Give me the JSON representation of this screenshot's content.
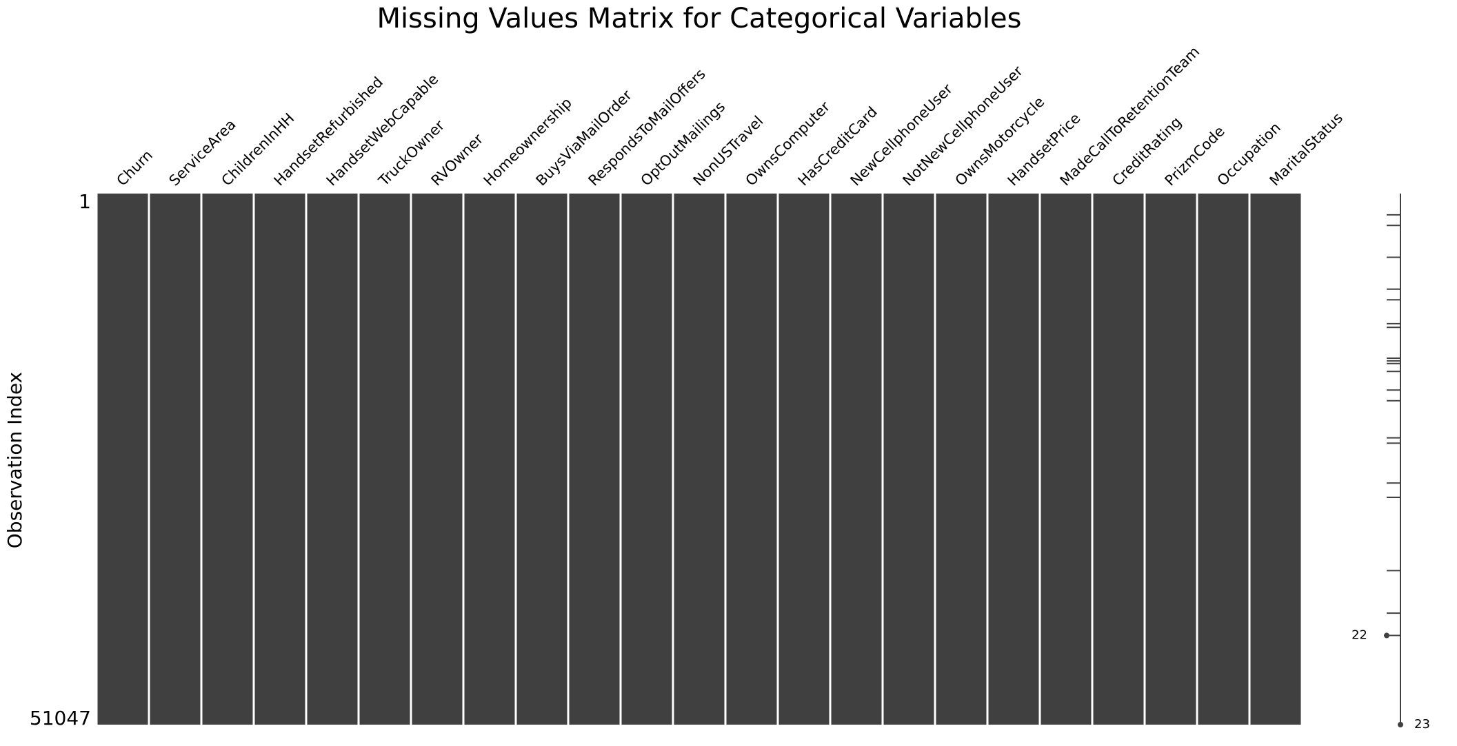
{
  "chart_data": {
    "type": "heatmap",
    "title": "Missing Values Matrix for Categorical Variables",
    "ylabel": "Observation Index",
    "columns": [
      "Churn",
      "ServiceArea",
      "ChildrenInHH",
      "HandsetRefurbished",
      "HandsetWebCapable",
      "TruckOwner",
      "RVOwner",
      "Homeownership",
      "BuysViaMailOrder",
      "RespondsToMailOffers",
      "OptOutMailings",
      "NonUSTravel",
      "OwnsComputer",
      "HasCreditCard",
      "NewCellphoneUser",
      "NotNewCellphoneUser",
      "OwnsMotorcycle",
      "HandsetPrice",
      "MadeCallToRetentionTeam",
      "CreditRating",
      "PrizmCode",
      "Occupation",
      "MaritalStatus"
    ],
    "y_range": [
      1,
      51047
    ],
    "y_ticks": [
      {
        "value": 1,
        "label": "1"
      },
      {
        "value": 51047,
        "label": "51047"
      }
    ],
    "present_color": "#404040",
    "missing_color": "#ffffff",
    "sparkline": {
      "min_label": "22",
      "max_label": "23",
      "min_value": 22,
      "max_value": 23,
      "min_at_fraction": 0.8321,
      "max_at_fraction": 1.0,
      "min_row_markers": [
        0.04,
        0.06,
        0.12,
        0.18,
        0.2,
        0.245,
        0.252,
        0.31,
        0.315,
        0.32,
        0.335,
        0.37,
        0.39,
        0.46,
        0.47,
        0.545,
        0.572,
        0.71,
        0.79
      ]
    }
  }
}
